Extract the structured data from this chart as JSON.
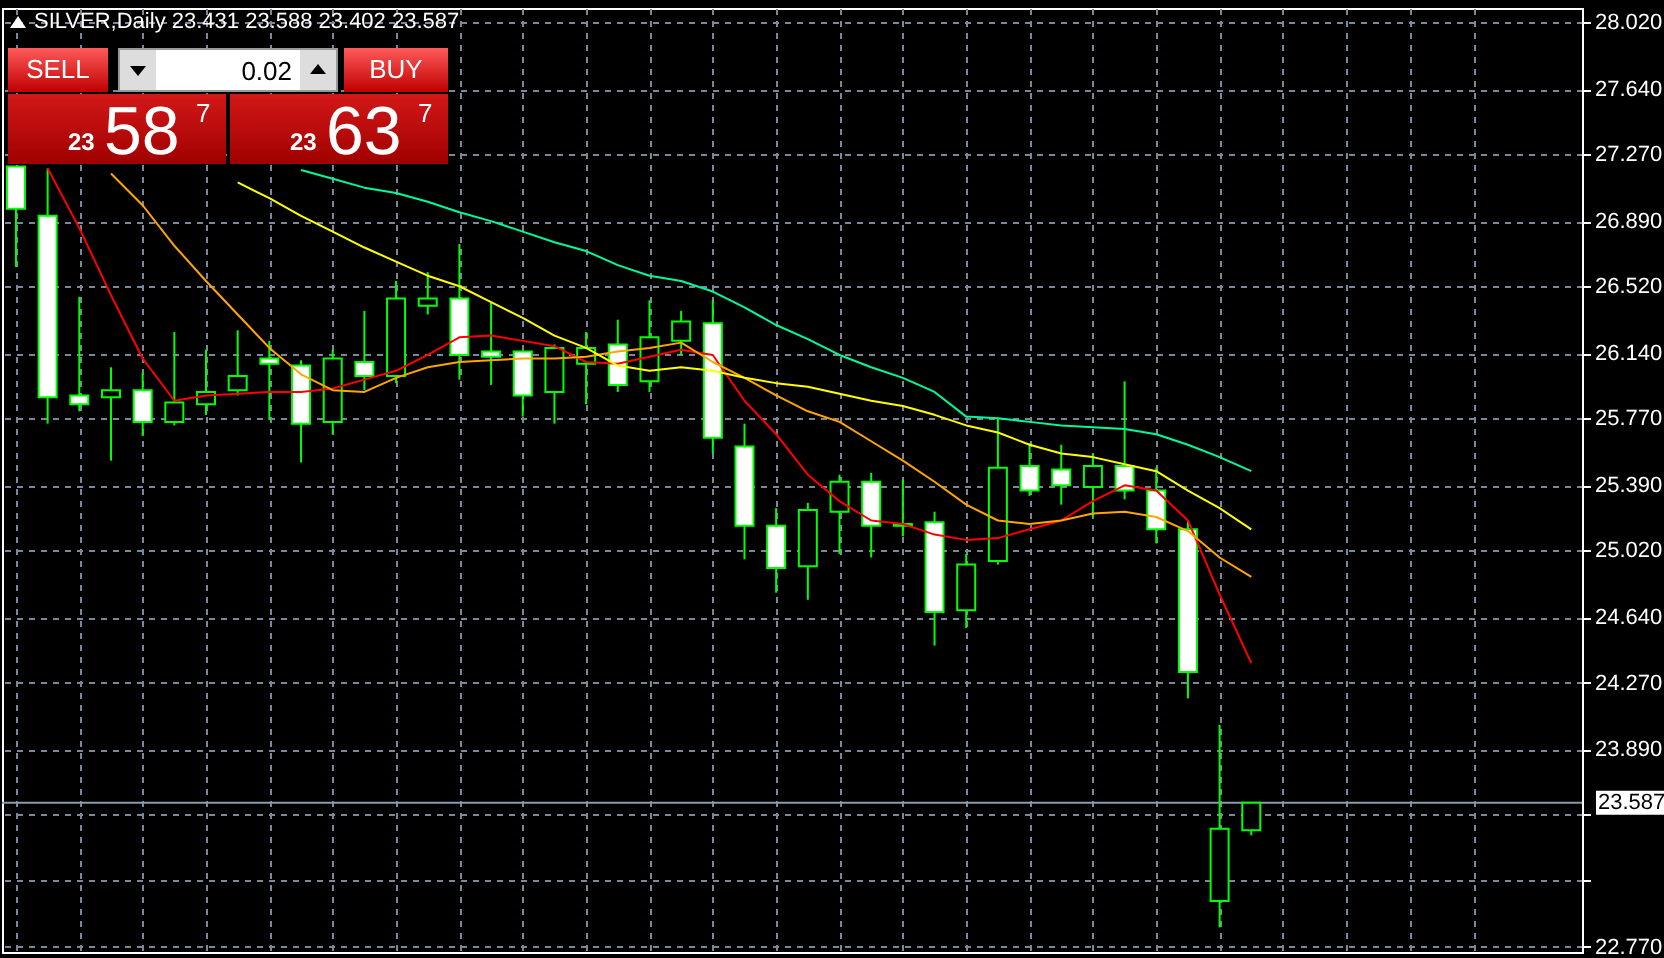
{
  "chart_data": {
    "type": "candlestick",
    "title": "SILVER,Daily 23.431 23.588 23.402 23.587",
    "categories": [
      null,
      null,
      null,
      null,
      null,
      null,
      null,
      null,
      null,
      null,
      null,
      null,
      null,
      null,
      null,
      null,
      null,
      null,
      null,
      null,
      null,
      null,
      null,
      null,
      null,
      null,
      null,
      null,
      null,
      null,
      null,
      null,
      null,
      null,
      null,
      null,
      null,
      null,
      null,
      null
    ],
    "color": "#00ff00",
    "ohlc": [
      [
        27.2,
        27.2,
        26.63,
        26.96
      ],
      [
        26.92,
        27.19,
        25.74,
        25.89
      ],
      [
        25.9,
        26.46,
        25.81,
        25.85
      ],
      [
        25.89,
        26.06,
        25.53,
        25.93
      ],
      [
        25.93,
        26.03,
        25.67,
        25.75
      ],
      [
        25.75,
        26.26,
        25.73,
        25.86
      ],
      [
        25.85,
        26.16,
        25.79,
        25.92
      ],
      [
        25.93,
        26.27,
        25.9,
        26.01
      ],
      [
        26.11,
        26.21,
        25.76,
        26.08
      ],
      [
        26.07,
        26.1,
        25.52,
        25.74
      ],
      [
        25.75,
        26.16,
        25.68,
        26.11
      ],
      [
        26.09,
        26.38,
        25.93,
        26.01
      ],
      [
        26.01,
        26.55,
        25.97,
        26.45
      ],
      [
        26.41,
        26.6,
        26.36,
        26.45
      ],
      [
        26.45,
        26.76,
        25.99,
        26.13
      ],
      [
        26.15,
        26.43,
        25.96,
        26.12
      ],
      [
        26.15,
        26.15,
        25.78,
        25.9
      ],
      [
        25.92,
        26.19,
        25.74,
        26.17
      ],
      [
        26.08,
        26.26,
        25.85,
        26.17
      ],
      [
        26.19,
        26.33,
        25.92,
        25.96
      ],
      [
        25.98,
        26.44,
        25.92,
        26.23
      ],
      [
        26.21,
        26.38,
        26.13,
        26.32
      ],
      [
        26.31,
        26.44,
        25.57,
        25.66
      ],
      [
        25.61,
        25.74,
        24.97,
        25.16
      ],
      [
        25.16,
        25.26,
        24.78,
        24.92
      ],
      [
        24.93,
        25.29,
        24.74,
        25.25
      ],
      [
        25.24,
        25.45,
        25.0,
        25.41
      ],
      [
        25.41,
        25.46,
        24.98,
        25.16
      ],
      [
        25.17,
        25.42,
        25.1,
        25.16
      ],
      [
        25.18,
        25.24,
        24.48,
        24.67
      ],
      [
        24.68,
        25.0,
        24.58,
        24.94
      ],
      [
        24.96,
        25.77,
        24.94,
        25.49
      ],
      [
        25.5,
        25.63,
        25.33,
        25.36
      ],
      [
        25.48,
        25.62,
        25.28,
        25.39
      ],
      [
        25.38,
        25.57,
        25.21,
        25.5
      ],
      [
        25.5,
        25.98,
        25.31,
        25.36
      ],
      [
        25.36,
        25.49,
        25.06,
        25.14
      ],
      [
        25.14,
        25.19,
        24.18,
        24.33
      ],
      [
        23.03,
        24.03,
        22.88,
        23.44
      ],
      [
        23.431,
        23.588,
        23.402,
        23.587
      ]
    ],
    "series": [
      {
        "type": "line",
        "color": "#ff0000",
        "values": [
          null,
          27.19,
          26.85,
          26.47,
          26.11,
          25.87,
          25.9,
          25.91,
          25.92,
          25.92,
          25.94,
          25.99,
          26.04,
          26.13,
          26.23,
          26.24,
          26.21,
          26.18,
          26.09,
          26.08,
          26.12,
          26.16,
          26.13,
          25.87,
          25.68,
          25.45,
          25.3,
          25.19,
          25.17,
          25.11,
          25.08,
          25.09,
          25.14,
          25.19,
          25.3,
          25.39,
          25.36,
          25.19,
          24.77,
          24.38
        ]
      },
      {
        "type": "line",
        "color": "#ffa500",
        "values": [
          null,
          null,
          null,
          27.16,
          26.98,
          26.75,
          26.55,
          26.36,
          26.17,
          26.02,
          25.93,
          25.92,
          26.0,
          26.06,
          26.09,
          26.1,
          26.11,
          26.11,
          26.12,
          26.15,
          26.17,
          26.2,
          26.09,
          26.0,
          25.9,
          25.81,
          25.75,
          25.64,
          25.53,
          25.41,
          25.28,
          25.19,
          25.17,
          25.19,
          25.23,
          25.24,
          25.21,
          25.13,
          24.98,
          24.87
        ]
      },
      {
        "type": "line",
        "color": "#ffff00",
        "values": [
          null,
          null,
          null,
          null,
          null,
          null,
          null,
          27.11,
          27.02,
          26.92,
          26.83,
          26.74,
          26.66,
          26.58,
          26.52,
          26.43,
          26.34,
          26.24,
          26.17,
          26.07,
          26.04,
          26.06,
          26.04,
          26.0,
          25.97,
          25.95,
          25.91,
          25.87,
          25.84,
          25.79,
          25.73,
          25.69,
          25.62,
          25.57,
          25.55,
          25.51,
          25.47,
          25.36,
          25.26,
          25.14
        ]
      },
      {
        "type": "line",
        "color": "#00fa9a",
        "values": [
          null,
          null,
          null,
          null,
          null,
          null,
          null,
          null,
          null,
          27.18,
          27.13,
          27.08,
          27.05,
          27.0,
          26.94,
          26.89,
          26.83,
          26.77,
          26.72,
          26.64,
          26.58,
          26.55,
          26.49,
          26.4,
          26.3,
          26.22,
          26.13,
          26.06,
          26.0,
          25.92,
          25.78,
          25.77,
          25.75,
          25.73,
          25.72,
          25.71,
          25.68,
          25.62,
          25.55,
          25.47
        ]
      }
    ],
    "ylim": [
      22.74,
      28.1
    ],
    "yticks": [
      {
        "value": 28.02,
        "label": "28.020"
      },
      {
        "value": 27.64,
        "label": "27.640"
      },
      {
        "value": 27.27,
        "label": "27.270"
      },
      {
        "value": 26.89,
        "label": "26.890"
      },
      {
        "value": 26.52,
        "label": "26.520"
      },
      {
        "value": 26.14,
        "label": "26.140"
      },
      {
        "value": 25.77,
        "label": "25.770"
      },
      {
        "value": 25.39,
        "label": "25.390"
      },
      {
        "value": 25.02,
        "label": "25.020"
      },
      {
        "value": 24.64,
        "label": "24.640"
      },
      {
        "value": 24.27,
        "label": "24.270"
      },
      {
        "value": 23.89,
        "label": "23.890"
      },
      {
        "value": 23.52,
        "label": null
      },
      {
        "value": 23.15,
        "label": null
      },
      {
        "value": 22.77,
        "label": "22.770"
      }
    ],
    "ref_lines": [
      {
        "axis": "y",
        "value": 23.587,
        "label": "23.587",
        "color": "#8a9aab"
      }
    ],
    "grid": true,
    "tick_labels": "y",
    "annotations": [
      "SELL",
      "0.02",
      "BUY",
      "23",
      "58",
      "7",
      "23",
      "63",
      "7"
    ]
  }
}
